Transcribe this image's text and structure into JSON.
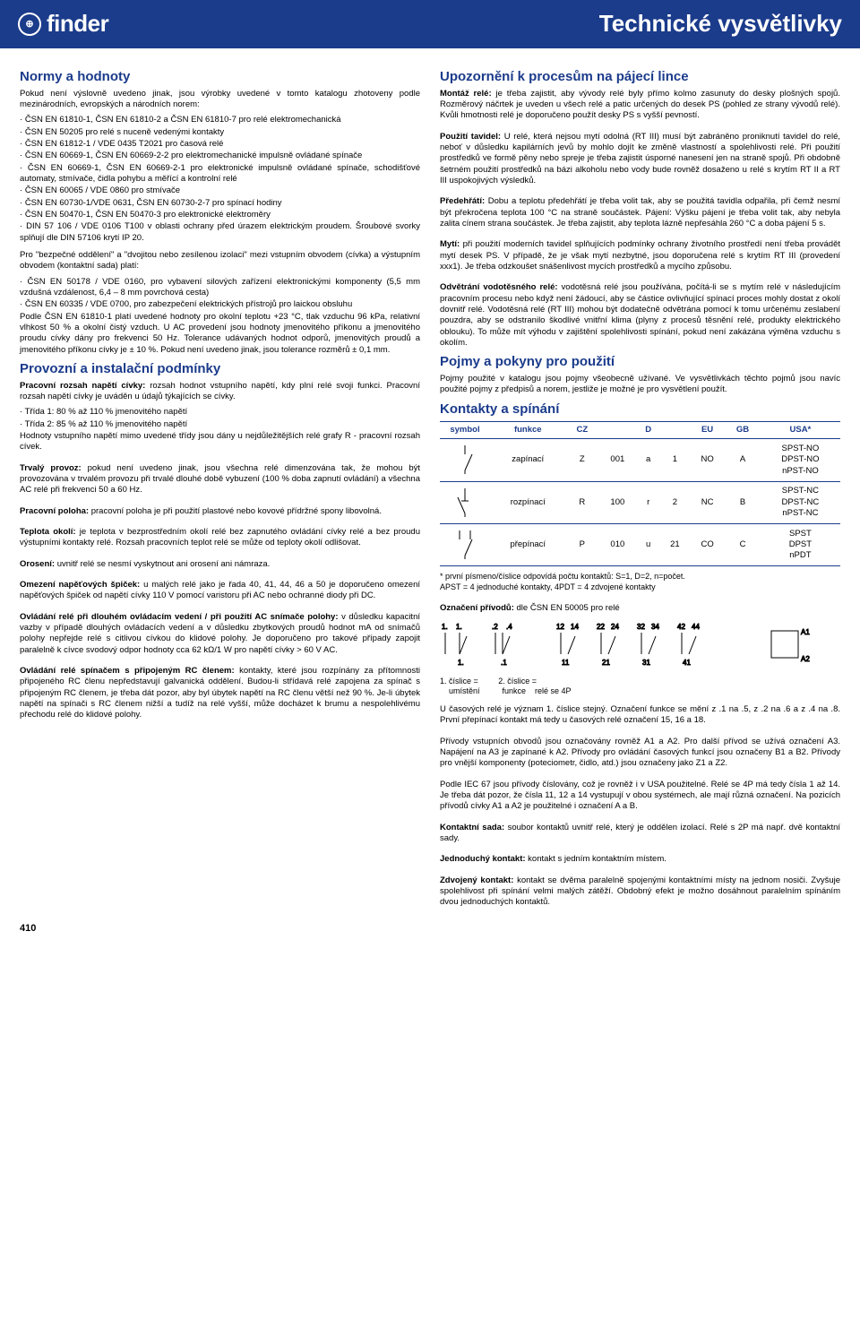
{
  "header": {
    "brand": "finder",
    "title": "Technické vysvětlivky"
  },
  "left": {
    "h_norms": "Normy a hodnoty",
    "norms_intro": "Pokud není výslovně uvedeno jinak, jsou výrobky uvedené v tomto katalogu zhotoveny podle mezinárodních, evropských a národních norem:",
    "norms": [
      "ČSN EN 61810-1, ČSN EN 61810-2 a ČSN EN 61810-7 pro relé elektromechanická",
      "ČSN EN 50205 pro relé s nuceně vedenými kontakty",
      "ČSN EN 61812-1 / VDE 0435 T2021 pro časová relé",
      "ČSN EN 60669-1, ČSN EN 60669-2-2 pro elektromechanické impulsně ovládané spínače",
      "ČSN EN 60669-1, ČSN EN 60669-2-1 pro elektronické impulsně ovládané spínače, schodišťové automaty, stmívače, čidla pohybu a měřící a kontrolní relé",
      "ČSN EN 60065 / VDE 0860 pro stmívače",
      "ČSN EN 60730-1/VDE 0631, ČSN EN 60730-2-7 pro spínací hodiny",
      "ČSN EN 50470-1, ČSN EN 50470-3 pro elektronické elektroměry",
      "DIN 57 106 / VDE 0106 T100 v oblasti ochrany před úrazem elektrickým proudem. Šroubové svorky splňují dle DIN 57106 krytí IP 20."
    ],
    "isolation_intro": "Pro \"bezpečné oddělení\" a \"dvojitou nebo zesílenou izolaci\" mezi vstupním obvodem (cívka) a výstupním obvodem (kontaktní sada) platí:",
    "isolation": [
      "ČSN EN 50178 / VDE 0160, pro vybavení silových zařízení elektronickými komponenty (5,5 mm vzdušná vzdálenost, 6,4 – 8 mm povrchová cesta)",
      "ČSN EN 60335 / VDE 0700, pro zabezpečení elektrických přístrojů pro laickou obsluhu"
    ],
    "isolation_post": "Podle ČSN EN 61810-1 platí uvedené hodnoty pro okolní teplotu +23 °C, tlak vzduchu 96 kPa, relativní vlhkost 50 % a okolní čistý vzduch. U AC provedení jsou hodnoty jmenovitého příkonu a jmenovitého proudu cívky dány pro frekvenci 50 Hz. Tolerance udávaných hodnot odporů, jmenovitých proudů a jmenovitého příkonu cívky je ± 10 %. Pokud není uvedeno jinak, jsou tolerance rozměrů ± 0,1 mm.",
    "h_provoz": "Provozní a instalační podmínky",
    "provoz_p1_label": "Pracovní rozsah napětí cívky:",
    "provoz_p1": " rozsah hodnot vstupního napětí, kdy plní relé svoji funkci. Pracovní rozsah napětí cívky je uváděn u údajů týkajících se cívky.",
    "provoz_li": [
      "Třída 1: 80 % až 110 % jmenovitého napětí",
      "Třída 2: 85 % až 110 % jmenovitého napětí"
    ],
    "provoz_p2": "Hodnoty vstupního napětí mimo uvedené třídy jsou dány u nejdůležitějších relé grafy R - pracovní rozsah cívek.",
    "trvaly_label": "Trvalý provoz:",
    "trvaly": " pokud není uvedeno jinak, jsou všechna relé dimenzována tak, že mohou být provozována v trvalém provozu při trvalé dlouhé době vybuzení (100 % doba zapnutí ovládání) a všechna AC relé při frekvenci 50 a 60 Hz.",
    "poloha_label": "Pracovní poloha:",
    "poloha": " pracovní poloha je při použití plastové nebo kovové přídržné spony libovolná.",
    "teplota_label": "Teplota okolí:",
    "teplota": " je teplota v bezprostředním okolí relé bez zapnutého ovládání cívky relé a bez proudu výstupními kontakty relé. Rozsah pracovních teplot relé se může od teploty okolí odlišovat.",
    "oroseni_label": "Orosení:",
    "oroseni": " uvnitř relé se nesmí vyskytnout ani orosení ani námraza.",
    "spicky_label": "Omezení napěťových špiček:",
    "spicky": " u malých relé jako je řada 40, 41, 44, 46 a 50 je doporučeno omezení napěťových špiček od napětí cívky 110 V pomocí varistoru při AC nebo ochranné diody při DC.",
    "ovladani_label": "Ovládání relé při dlouhém ovládacím vedení / při použití AC snímače polohy:",
    "ovladani": " v důsledku kapacitní vazby v případě dlouhých ovládacích vedení a v důsledku zbytkových proudů hodnot mA od snímačů polohy nepřejde relé s citlivou cívkou do klidové polohy. Je doporučeno pro takové případy zapojit paralelně k cívce svodový odpor hodnoty cca 62 kΩ/1 W pro napětí cívky > 60 V AC.",
    "rc_label": "Ovládání relé spínačem s připojeným RC členem:",
    "rc": " kontakty, které jsou rozpínány za přítomnosti připojeného RC členu nepředstavují galvanická oddělení. Budou-li střídavá relé zapojena za spínač s připojeným RC členem, je třeba dát pozor, aby byl úbytek napětí na RC členu větší než 90 %. Je-li úbytek napětí na spínači s RC členem nižší a tudíž na relé vyšší, může docházet k brumu a nespolehlivému přechodu relé do klidové polohy."
  },
  "right": {
    "h_upozorneni": "Upozornění k procesům na pájecí lince",
    "montaz_label": "Montáž relé:",
    "montaz": " je třeba zajistit, aby vývody relé byly přímo kolmo zasunuty do desky plošných spojů. Rozměrový náčrtek je uveden u všech relé a patic určených do desek PS (pohled ze strany vývodů relé). Kvůli hmotnosti relé je doporučeno použít desky PS s vyšší pevností.",
    "tavidel_label": "Použití tavidel:",
    "tavidel": " U relé, která nejsou mytí odolná (RT III) musí být zabráněno proniknutí tavidel do relé, neboť v důsledku kapilárních jevů by mohlo dojít ke změně vlastností a spolehlivosti relé. Při použití prostředků ve formě pěny nebo spreje je třeba zajistit úsporné nanesení jen na straně spojů. Při obdobně šetrném použití prostředků na bázi alkoholu nebo vody bude rovněž dosaženo u relé s krytím RT II a RT III uspokojivých výsledků.",
    "predehrati_label": "Předehřátí:",
    "predehrati": " Dobu a teplotu předehřátí je třeba volit tak, aby se použitá tavidla odpařila, při čemž nesmí být překročena teplota 100 °C na straně součástek. Pájení: Výšku pájení je třeba volit tak, aby nebyla zalita cínem strana součástek. Je třeba zajistit, aby teplota lázně nepřesáhla 260 °C a doba pájení 5 s.",
    "myti_label": "Mytí:",
    "myti": " při použití moderních tavidel splňujících podmínky ochrany životního prostředí není třeba provádět mytí desek PS. V případě, že je však mytí nezbytné, jsou doporučena relé s krytím RT III (provedení xxx1). Je třeba odzkoušet snášenlivost mycích prostředků a mycího způsobu.",
    "odvetrani_label": "Odvětrání vodotěsného relé:",
    "odvetrani": " vodotěsná relé jsou používána, počítá-li se s mytím relé v následujícím pracovním procesu nebo když není žádoucí, aby se částice ovlivňující spínací proces mohly dostat z okolí dovnitř relé. Vodotěsná relé (RT III) mohou být dodatečně odvětrána pomocí k tomu určenému zeslabení pouzdra, aby se odstranilo škodlivé vnitřní klima (plyny z procesů těsnění relé, produkty elektrického oblouku). To může mít výhodu v zajištění spolehlivosti spínání, pokud není zakázána výměna vzduchu s okolím.",
    "h_pojmy": "Pojmy a pokyny pro použití",
    "pojmy_p": "Pojmy použité v katalogu jsou pojmy všeobecně užívané. Ve vysvětlivkách těchto pojmů jsou navíc použité pojmy z předpisů a norem, jestliže je možné je pro vysvětlení použít.",
    "h_kontakty": "Kontakty a spínání",
    "table": {
      "headers": [
        "symbol",
        "funkce",
        "CZ",
        "",
        "D",
        "",
        "EU",
        "GB",
        "USA*"
      ],
      "rows": [
        {
          "funkce": "zapínací",
          "cz": "Z",
          "a": "001",
          "d": "a",
          "e": "1",
          "eu": "NO",
          "gb": "A",
          "usa": "SPST-NO\nDPST-NO\nnPST-NO"
        },
        {
          "funkce": "rozpínací",
          "cz": "R",
          "a": "100",
          "d": "r",
          "e": "2",
          "eu": "NC",
          "gb": "B",
          "usa": "SPST-NC\nDPST-NC\nnPST-NC"
        },
        {
          "funkce": "přepínací",
          "cz": "P",
          "a": "010",
          "d": "u",
          "e": "21",
          "eu": "CO",
          "gb": "C",
          "usa": "SPST\nDPST\nnPDT"
        }
      ]
    },
    "table_note": "* první písmeno/číslice odpovídá počtu kontaktů: S=1, D=2, n=počet.\n   APST = 4 jednoduché kontakty, 4PDT = 4 zdvojené kontakty",
    "oznaceni_label": "Označení přívodů:",
    "oznaceni": " dle ČSN EN 50005 pro relé",
    "digits_line": "1. číslice =         2. číslice =\n    umístění          funkce    relé se 4P",
    "casova": "U časových relé je význam 1. číslice stejný. Označení funkce se mění z .1 na .5, z .2 na .6 a z .4 na .8. První přepínací kontakt má tedy u časových relé označení 15, 16 a 18.",
    "privody": "Přívody vstupních obvodů jsou označovány rovněž A1 a A2. Pro další přívod se užívá označení A3. Napájení na A3 je zapínané k A2. Přívody pro ovládání časových funkcí jsou označeny B1 a B2. Přívody pro vnější komponenty (poteciometr, čidlo, atd.) jsou označeny jako Z1 a Z2.",
    "iec": "Podle IEC 67 jsou přívody číslovány, což je rovněž i v USA použitelné. Relé se 4P má tedy čísla 1 až 14. Je třeba dát pozor, že čísla 11, 12 a 14 vystupují v obou systémech, ale mají různá označení. Na pozicích přívodů cívky A1 a A2 je použitelné i označení A a B.",
    "sada_label": "Kontaktní sada:",
    "sada": " soubor kontaktů uvnitř relé, který je oddělen izolací. Relé s 2P má např. dvě kontaktní sady.",
    "jednoduchy_label": "Jednoduchý kontakt:",
    "jednoduchy": " kontakt s jedním kontaktním místem.",
    "zdvojeny_label": "Zdvojený kontakt:",
    "zdvojeny": " kontakt se dvěma paralelně spojenými kontaktními místy na jednom nosiči. Zvyšuje spolehlivost při spínání velmi malých zátěží. Obdobný efekt je možno dosáhnout paralelním spínáním dvou jednoduchých kontaktů."
  },
  "page_number": "410"
}
